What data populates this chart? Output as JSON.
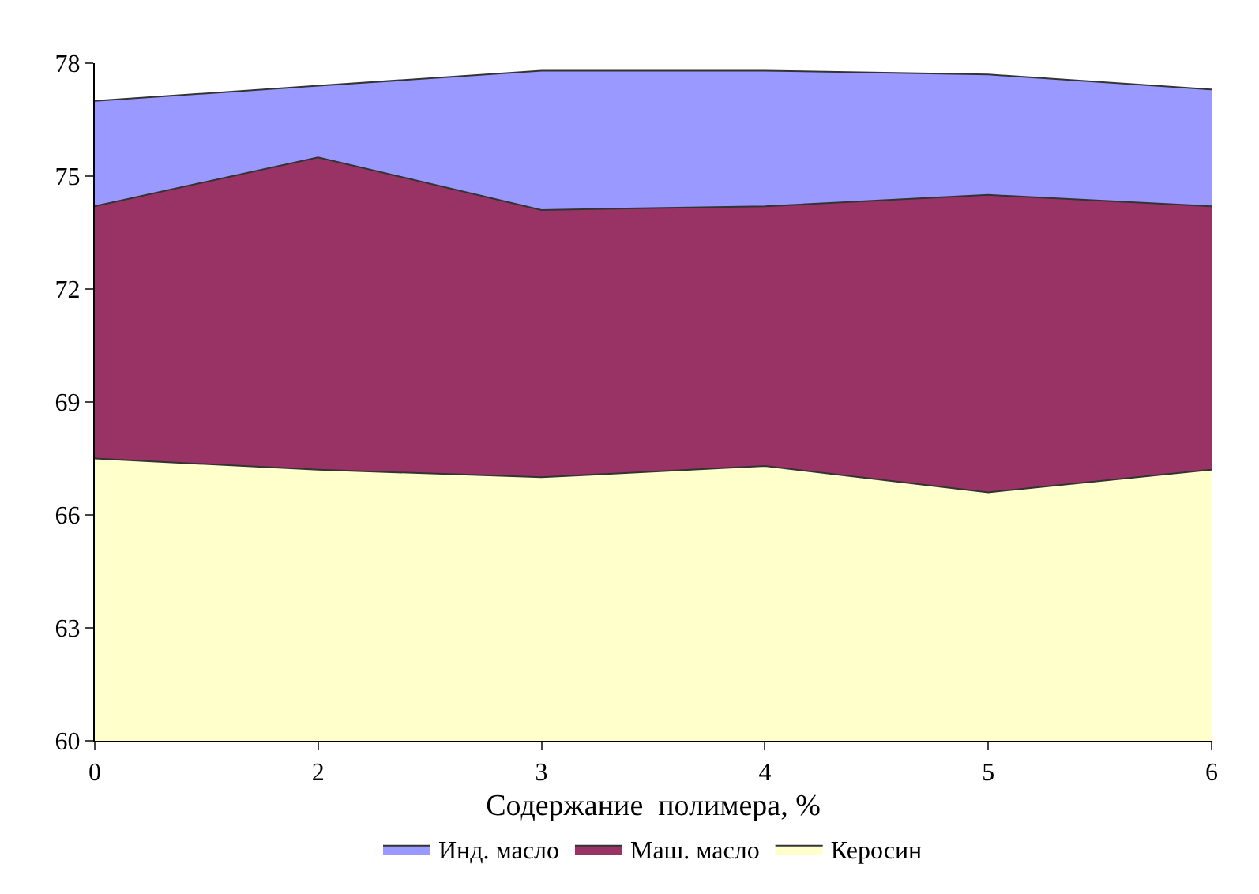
{
  "chart_data": {
    "type": "area",
    "xlabel": "Содержание  полимера, %",
    "categories": [
      "0",
      "2",
      "3",
      "4",
      "5",
      "6"
    ],
    "series": [
      {
        "name": "Инд. масло",
        "color": "#9999ff",
        "values": [
          77.0,
          77.4,
          77.8,
          77.8,
          77.7,
          77.3
        ]
      },
      {
        "name": "Маш. масло",
        "color": "#993366",
        "values": [
          74.2,
          75.5,
          74.1,
          74.2,
          74.5,
          74.2
        ]
      },
      {
        "name": "Керосин",
        "color": "#ffffcc",
        "values": [
          67.5,
          67.2,
          67.0,
          67.3,
          66.6,
          67.2
        ]
      }
    ],
    "ylim": [
      60,
      78
    ],
    "yticks": [
      60,
      63,
      66,
      69,
      72,
      75,
      78
    ],
    "grid": false,
    "legend": "bottom"
  }
}
